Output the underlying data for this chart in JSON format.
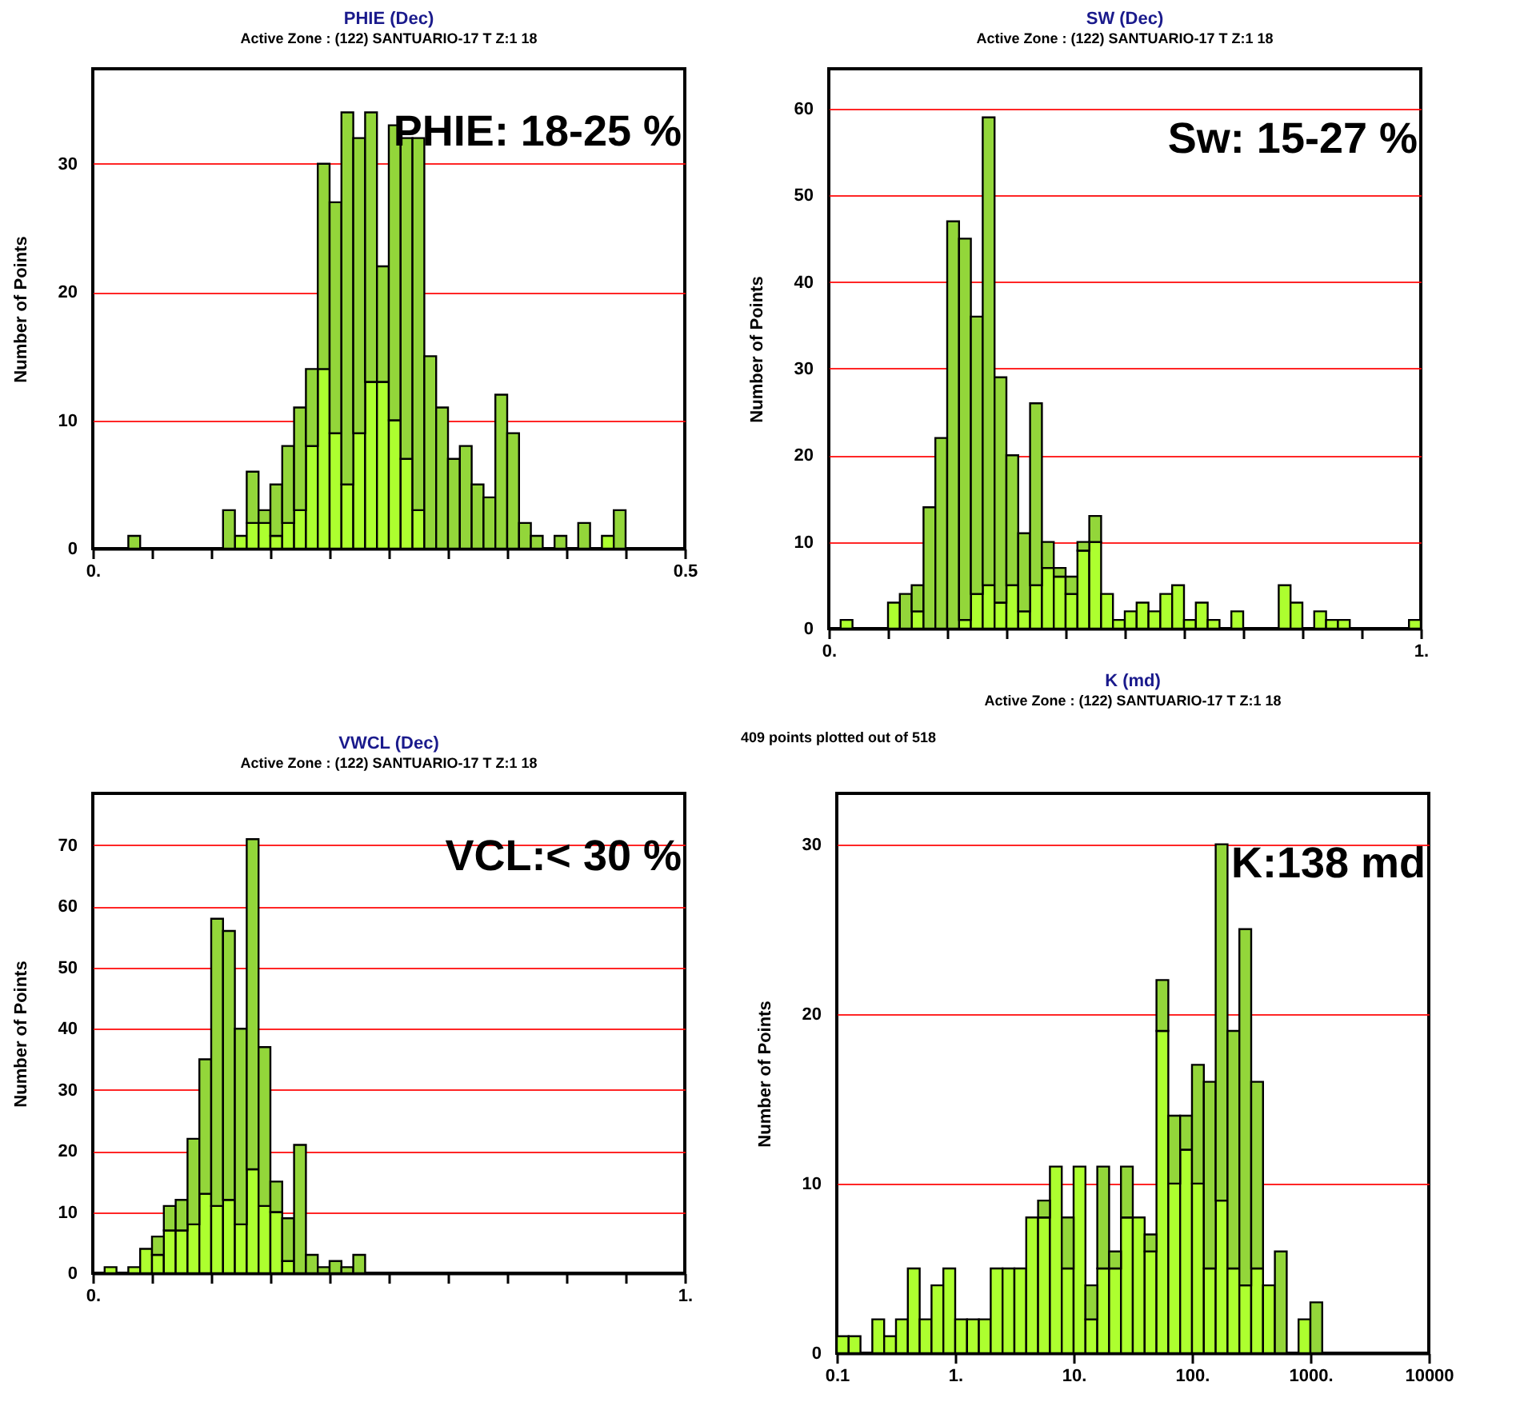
{
  "chart_data": [
    {
      "type": "bar",
      "title": "PHIE (Dec)",
      "subtitle": "Active Zone : (122) SANTUARIO-17 T   Z:1  18",
      "ylabel": "Number of Points",
      "stacked": true,
      "grid": "y",
      "x": [
        0.005,
        0.015,
        0.025,
        0.035,
        0.045,
        0.055,
        0.065,
        0.075,
        0.085,
        0.095,
        0.105,
        0.115,
        0.125,
        0.135,
        0.145,
        0.155,
        0.165,
        0.175,
        0.185,
        0.195,
        0.205,
        0.215,
        0.225,
        0.235,
        0.245,
        0.255,
        0.265,
        0.275,
        0.285,
        0.295,
        0.305,
        0.315,
        0.325,
        0.335,
        0.345,
        0.355,
        0.365,
        0.375,
        0.385,
        0.395,
        0.405,
        0.415,
        0.425,
        0.435,
        0.445,
        0.455,
        0.465,
        0.475,
        0.485,
        0.495
      ],
      "series": [
        {
          "color": "#adff2f",
          "values": [
            0,
            0,
            0,
            0,
            0,
            0,
            0,
            0,
            0,
            0,
            0,
            0,
            1,
            2,
            2,
            1,
            2,
            3,
            8,
            14,
            9,
            5,
            9,
            13,
            13,
            10,
            7,
            3,
            0,
            0,
            0,
            0,
            0,
            0,
            0,
            0,
            0,
            0,
            0,
            0,
            0,
            0,
            0,
            1,
            0,
            0,
            0,
            0,
            0,
            0
          ]
        },
        {
          "color": "#93d63a",
          "values": [
            0,
            0,
            0,
            1,
            0,
            0,
            0,
            0,
            0,
            0,
            0,
            3,
            0,
            4,
            1,
            4,
            6,
            8,
            6,
            16,
            18,
            29,
            23,
            21,
            9,
            23,
            25,
            29,
            15,
            11,
            7,
            8,
            5,
            4,
            12,
            9,
            2,
            1,
            0,
            1,
            0,
            2,
            0,
            0,
            3,
            0,
            0,
            0,
            0,
            0
          ]
        }
      ],
      "xlim": [
        0,
        0.5
      ],
      "xticks": [
        {
          "value": 0,
          "label": "0."
        },
        {
          "value": 0.05,
          "label": null
        },
        {
          "value": 0.1,
          "label": null
        },
        {
          "value": 0.15,
          "label": null
        },
        {
          "value": 0.2,
          "label": null
        },
        {
          "value": 0.25,
          "label": null
        },
        {
          "value": 0.3,
          "label": null
        },
        {
          "value": 0.35,
          "label": null
        },
        {
          "value": 0.4,
          "label": null
        },
        {
          "value": 0.45,
          "label": null
        },
        0.5
      ],
      "ylim": [
        0,
        37.4
      ],
      "yticks": [
        0,
        10,
        20,
        30
      ],
      "annotations": [
        "PHIE: 18-25 %"
      ]
    },
    {
      "type": "bar",
      "title": "SW (Dec)",
      "subtitle": "Active Zone : (122) SANTUARIO-17 T   Z:1  18",
      "ylabel": "Number of Points",
      "stacked": true,
      "grid": "y",
      "x": [
        0.01,
        0.03,
        0.05,
        0.07,
        0.09,
        0.11,
        0.13,
        0.15,
        0.17,
        0.19,
        0.21,
        0.23,
        0.25,
        0.27,
        0.29,
        0.31,
        0.33,
        0.35,
        0.37,
        0.39,
        0.41,
        0.43,
        0.45,
        0.47,
        0.49,
        0.51,
        0.53,
        0.55,
        0.57,
        0.59,
        0.61,
        0.63,
        0.65,
        0.67,
        0.69,
        0.71,
        0.73,
        0.75,
        0.77,
        0.79,
        0.81,
        0.83,
        0.85,
        0.87,
        0.89,
        0.91,
        0.93,
        0.95,
        0.97,
        0.99
      ],
      "series": [
        {
          "color": "#adff2f",
          "values": [
            0,
            1,
            0,
            0,
            0,
            3,
            0,
            2,
            0,
            0,
            0,
            1,
            4,
            5,
            3,
            5,
            2,
            5,
            7,
            6,
            4,
            9,
            10,
            4,
            1,
            2,
            3,
            2,
            4,
            5,
            1,
            3,
            1,
            0,
            2,
            0,
            0,
            0,
            5,
            3,
            0,
            2,
            1,
            1,
            0,
            0,
            0,
            0,
            0,
            1
          ]
        },
        {
          "color": "#93d63a",
          "values": [
            0,
            0,
            0,
            0,
            0,
            0,
            4,
            3,
            14,
            22,
            47,
            44,
            32,
            54,
            26,
            15,
            9,
            21,
            3,
            1,
            2,
            1,
            3,
            0,
            0,
            0,
            0,
            0,
            0,
            0,
            0,
            0,
            0,
            0,
            0,
            0,
            0,
            0,
            0,
            0,
            0,
            0,
            0,
            0,
            0,
            0,
            0,
            0,
            0,
            0
          ]
        }
      ],
      "xlim": [
        0,
        1
      ],
      "xticks": [
        {
          "value": 0,
          "label": "0."
        },
        {
          "value": 0.1,
          "label": null
        },
        {
          "value": 0.2,
          "label": null
        },
        {
          "value": 0.3,
          "label": null
        },
        {
          "value": 0.4,
          "label": null
        },
        {
          "value": 0.5,
          "label": null
        },
        {
          "value": 0.6,
          "label": null
        },
        {
          "value": 0.7,
          "label": null
        },
        {
          "value": 0.8,
          "label": null
        },
        {
          "value": 0.9,
          "label": null
        },
        {
          "value": 1,
          "label": "1."
        }
      ],
      "ylim": [
        0,
        64.6
      ],
      "yticks": [
        0,
        10,
        20,
        30,
        40,
        50,
        60
      ],
      "annotations": [
        "Sw: 15-27 %"
      ]
    },
    {
      "type": "bar",
      "title": "VWCL (Dec)",
      "subtitle": "Active Zone : (122) SANTUARIO-17 T   Z:1  18",
      "ylabel": "Number of Points",
      "stacked": true,
      "grid": "y",
      "x": [
        0.01,
        0.03,
        0.05,
        0.07,
        0.09,
        0.11,
        0.13,
        0.15,
        0.17,
        0.19,
        0.21,
        0.23,
        0.25,
        0.27,
        0.29,
        0.31,
        0.33,
        0.35,
        0.37,
        0.39,
        0.41,
        0.43,
        0.45,
        0.47,
        0.49,
        0.51,
        0.53,
        0.55,
        0.57,
        0.59,
        0.61,
        0.63,
        0.65,
        0.67,
        0.69,
        0.71,
        0.73,
        0.75,
        0.77,
        0.79,
        0.81,
        0.83,
        0.85,
        0.87,
        0.89,
        0.91,
        0.93,
        0.95,
        0.97,
        0.99
      ],
      "series": [
        {
          "color": "#adff2f",
          "values": [
            0,
            1,
            0,
            1,
            4,
            3,
            7,
            7,
            8,
            13,
            11,
            12,
            8,
            17,
            11,
            10,
            2,
            0,
            0,
            0,
            0,
            0,
            0,
            0,
            0,
            0,
            0,
            0,
            0,
            0,
            0,
            0,
            0,
            0,
            0,
            0,
            0,
            0,
            0,
            0,
            0,
            0,
            0,
            0,
            0,
            0,
            0,
            0,
            0,
            0
          ]
        },
        {
          "color": "#93d63a",
          "values": [
            0,
            0,
            0,
            0,
            0,
            3,
            4,
            5,
            14,
            22,
            47,
            44,
            32,
            54,
            26,
            5,
            7,
            21,
            3,
            1,
            2,
            1,
            3,
            0,
            0,
            0,
            0,
            0,
            0,
            0,
            0,
            0,
            0,
            0,
            0,
            0,
            0,
            0,
            0,
            0,
            0,
            0,
            0,
            0,
            0,
            0,
            0,
            0,
            0,
            0
          ]
        }
      ],
      "xlim": [
        0,
        1
      ],
      "xticks": [
        {
          "value": 0,
          "label": "0."
        },
        {
          "value": 0.1,
          "label": null
        },
        {
          "value": 0.2,
          "label": null
        },
        {
          "value": 0.3,
          "label": null
        },
        {
          "value": 0.4,
          "label": null
        },
        {
          "value": 0.5,
          "label": null
        },
        {
          "value": 0.6,
          "label": null
        },
        {
          "value": 0.7,
          "label": null
        },
        {
          "value": 0.8,
          "label": null
        },
        {
          "value": 0.9,
          "label": null
        },
        {
          "value": 1,
          "label": "1."
        }
      ],
      "ylim": [
        0,
        78.5
      ],
      "yticks": [
        0,
        10,
        20,
        30,
        40,
        50,
        60,
        70
      ],
      "annotations": [
        "VCL:< 30 %"
      ]
    },
    {
      "type": "bar",
      "title": "K (md)",
      "subtitle": "Active Zone : (122) SANTUARIO-17 T   Z:1  18",
      "ylabel": "Number of Points",
      "stacked": true,
      "grid": "y",
      "log": "x",
      "x": [
        0.1122,
        0.1413,
        0.1778,
        0.2239,
        0.2818,
        0.3548,
        0.4467,
        0.5623,
        0.7079,
        0.8913,
        1.122,
        1.413,
        1.778,
        2.239,
        2.818,
        3.548,
        4.467,
        5.623,
        7.079,
        8.913,
        11.22,
        14.13,
        17.78,
        22.39,
        28.18,
        35.48,
        44.67,
        56.23,
        70.79,
        89.13,
        112.2,
        141.3,
        177.8,
        223.9,
        281.8,
        354.8,
        446.7,
        562.3,
        707.9,
        891.3,
        1122,
        1413,
        1778,
        2239,
        2818,
        3548,
        4467,
        5623,
        7079,
        8913
      ],
      "series": [
        {
          "color": "#adff2f",
          "values": [
            1,
            1,
            0,
            2,
            1,
            2,
            5,
            2,
            4,
            5,
            2,
            2,
            2,
            5,
            5,
            5,
            8,
            8,
            11,
            5,
            11,
            2,
            5,
            5,
            8,
            8,
            6,
            19,
            10,
            12,
            10,
            5,
            9,
            5,
            4,
            5,
            4,
            0,
            0,
            2,
            0,
            0,
            0,
            0,
            0,
            0,
            0,
            0,
            0,
            0
          ]
        },
        {
          "color": "#93d63a",
          "values": [
            0,
            0,
            0,
            0,
            0,
            0,
            0,
            0,
            0,
            0,
            0,
            0,
            0,
            0,
            0,
            0,
            0,
            1,
            0,
            3,
            0,
            2,
            6,
            1,
            3,
            0,
            1,
            3,
            4,
            2,
            7,
            11,
            21,
            14,
            21,
            11,
            0,
            6,
            0,
            0,
            3,
            0,
            0,
            0,
            0,
            0,
            0,
            0,
            0,
            0
          ]
        }
      ],
      "xlim": [
        0.1,
        10000
      ],
      "xticks": [
        0.1,
        {
          "value": 1,
          "label": "1."
        },
        {
          "value": 10,
          "label": "10."
        },
        {
          "value": 100,
          "label": "100."
        },
        {
          "value": 1000,
          "label": "1000."
        },
        10000
      ],
      "ylim": [
        0,
        33
      ],
      "yticks": [
        0,
        10,
        20,
        30
      ],
      "annotations": [
        "K:138 md",
        "409 points plotted out of 518"
      ]
    }
  ]
}
